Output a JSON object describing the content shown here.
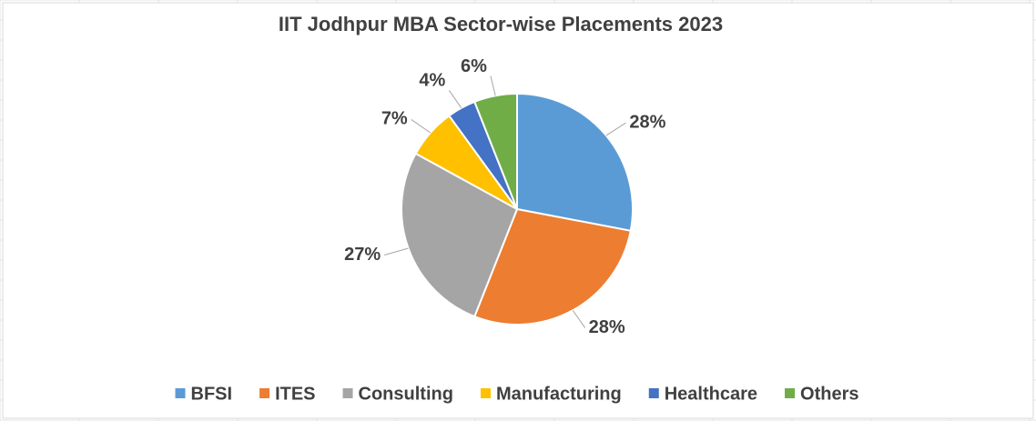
{
  "chart_data": {
    "type": "pie",
    "title": "IIT Jodhpur MBA Sector-wise Placements 2023",
    "categories": [
      "BFSI",
      "ITES",
      "Consulting",
      "Manufacturing",
      "Healthcare",
      "Others"
    ],
    "values": [
      28,
      28,
      27,
      7,
      4,
      6
    ],
    "value_labels": [
      "28%",
      "28%",
      "27%",
      "7%",
      "4%",
      "6%"
    ],
    "colors": [
      "#5b9bd5",
      "#ed7d31",
      "#a5a5a5",
      "#ffc000",
      "#4472c4",
      "#70ad47"
    ],
    "legend": "bottom"
  }
}
